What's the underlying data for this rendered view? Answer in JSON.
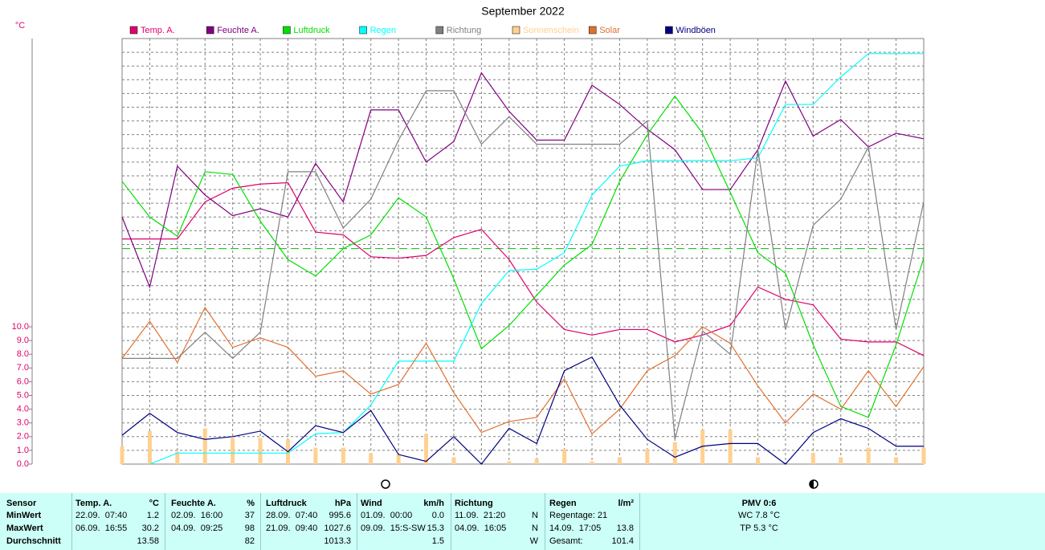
{
  "chart_data": {
    "type": "line",
    "title": "September 2022",
    "y_label": "°C",
    "categories": [
      null,
      null,
      null,
      null,
      null,
      null,
      null,
      null,
      null,
      null,
      null,
      null,
      null,
      null,
      null,
      null,
      null,
      null,
      null,
      null,
      null,
      null,
      null,
      null,
      null,
      null,
      null,
      null,
      null,
      null
    ],
    "ylim": [
      0,
      31
    ],
    "yticks": [
      {
        "value": 0,
        "label": "0.0"
      },
      {
        "value": 1,
        "label": "1.0"
      },
      {
        "value": 2,
        "label": "2.0"
      },
      {
        "value": 3,
        "label": "3.0"
      },
      {
        "value": 4,
        "label": "4.0"
      },
      {
        "value": 5,
        "label": "5.0"
      },
      {
        "value": 6,
        "label": "6.0"
      },
      {
        "value": 7,
        "label": "7.0"
      },
      {
        "value": 8,
        "label": "8.0"
      },
      {
        "value": 9,
        "label": "9.0"
      },
      {
        "value": 10,
        "label": "10.0"
      }
    ],
    "grid": true,
    "reference_lines": [
      {
        "value": 15.7,
        "color": "#00c000"
      }
    ],
    "series": [
      {
        "name": "Temp. A.",
        "color": "#e0006c",
        "values": [
          16.4,
          16.4,
          16.4,
          19.1,
          20.1,
          20.4,
          20.5,
          16.9,
          16.7,
          15.1,
          15.0,
          15.2,
          16.5,
          17.1,
          14.9,
          11.8,
          9.8,
          9.4,
          9.8,
          9.8,
          8.9,
          9.4,
          10.1,
          12.9,
          12.0,
          11.6,
          9.1,
          8.9,
          8.9,
          7.9
        ]
      },
      {
        "name": "Feuchte A.",
        "color": "#800080",
        "values": [
          18.0,
          12.9,
          21.7,
          19.6,
          18.1,
          18.6,
          18.0,
          21.9,
          19.1,
          25.8,
          25.8,
          22.0,
          23.5,
          28.5,
          25.7,
          23.6,
          23.6,
          27.6,
          26.2,
          24.4,
          22.9,
          20.0,
          20.0,
          22.9,
          27.9,
          23.9,
          25.1,
          23.1,
          24.1,
          23.7
        ]
      },
      {
        "name": "Luftdruck",
        "color": "#00e000",
        "values": [
          20.6,
          18.0,
          16.6,
          21.3,
          21.1,
          17.7,
          14.9,
          13.7,
          15.7,
          16.7,
          19.4,
          18.0,
          13.5,
          8.4,
          10.1,
          12.3,
          14.5,
          16.0,
          20.6,
          24.0,
          26.8,
          24.1,
          19.8,
          15.4,
          13.9,
          8.7,
          4.2,
          3.4,
          8.7,
          15.0
        ]
      },
      {
        "name": "Regen",
        "color": "#00ffff",
        "values": [
          null,
          0,
          0.8,
          0.8,
          0.8,
          0.8,
          0.8,
          2.2,
          2.3,
          4.3,
          7.5,
          7.5,
          7.5,
          11.7,
          14.1,
          14.2,
          15.4,
          19.6,
          21.7,
          22.1,
          22.1,
          22.1,
          22.1,
          22.3,
          26.2,
          26.2,
          28.2,
          29.9,
          29.9,
          29.9
        ]
      },
      {
        "name": "Richtung",
        "color": "#808080",
        "values": [
          7.7,
          7.7,
          7.7,
          9.6,
          7.7,
          9.6,
          21.3,
          21.3,
          17.2,
          19.3,
          23.6,
          27.2,
          27.2,
          23.3,
          25.3,
          23.3,
          23.3,
          23.3,
          23.3,
          25.0,
          1.8,
          9.7,
          8.0,
          22.9,
          9.8,
          17.4,
          19.3,
          23.1,
          9.8,
          19.1
        ]
      },
      {
        "name": "Sonnenschein",
        "color": "#ffd090",
        "kind": "bar",
        "values": [
          1.3,
          2.4,
          0.9,
          2.6,
          1.9,
          1.9,
          1.8,
          1.2,
          1.2,
          0.8,
          0.7,
          2.2,
          0.5,
          0,
          0.2,
          0.4,
          1.1,
          0.2,
          0.5,
          1.1,
          1.6,
          2.5,
          2.5,
          0.5,
          0,
          0.8,
          0.5,
          1.2,
          0.5,
          1.2
        ]
      },
      {
        "name": "Solar",
        "color": "#e07030",
        "values": [
          7.7,
          10.4,
          7.4,
          11.4,
          8.5,
          9.2,
          8.5,
          6.4,
          6.8,
          5.1,
          5.8,
          8.8,
          5.2,
          2.3,
          3.1,
          3.4,
          6.2,
          2.2,
          4.0,
          6.8,
          7.9,
          10.0,
          8.8,
          5.7,
          3.0,
          5.1,
          4.0,
          6.8,
          4.2,
          7.1
        ]
      },
      {
        "name": "Windböen",
        "color": "#000080",
        "values": [
          2.1,
          3.7,
          2.3,
          1.8,
          2.0,
          2.4,
          0.9,
          2.8,
          2.3,
          3.9,
          0.7,
          0.2,
          2.0,
          0,
          2.6,
          1.5,
          6.8,
          7.8,
          4.3,
          1.8,
          0.5,
          1.3,
          1.5,
          1.5,
          0,
          2.3,
          3.3,
          2.6,
          1.3,
          1.3
        ]
      }
    ]
  },
  "stats": {
    "sensor": {
      "title": "Sensor",
      "rows": [
        "MinWert",
        "MaxWert",
        "Durchschnitt"
      ]
    },
    "columns": [
      {
        "title": "Temp. A.",
        "unit": "°C",
        "min": [
          "22.09.  07:40",
          "1.2"
        ],
        "max": [
          "06.09.  16:55",
          "30.2"
        ],
        "avg": [
          "13.58"
        ]
      },
      {
        "title": "Feuchte A.",
        "unit": "%",
        "min": [
          "02.09.  16:00",
          "37"
        ],
        "max": [
          "04.09.  09:25",
          "98"
        ],
        "avg": [
          "82"
        ]
      },
      {
        "title": "Luftdruck",
        "unit": "hPa",
        "min": [
          "28.09.  07:40",
          "995.6"
        ],
        "max": [
          "21.09.  09:40",
          "1027.6"
        ],
        "avg": [
          "1013.3"
        ]
      },
      {
        "title": "Wind",
        "unit": "km/h",
        "min": [
          "01.09.  00:00",
          "0.0"
        ],
        "max": [
          "09.09.  15:S-SW",
          "15.3"
        ],
        "avg": [
          "1.5"
        ]
      },
      {
        "title": "Richtung",
        "min": [
          "11.09.  21:20",
          "N"
        ],
        "max": [
          "04.09.  16:05",
          "N"
        ],
        "avg": [
          "W"
        ]
      },
      {
        "title": "Regen",
        "unit": "l/m²",
        "min": [
          "Regentage: 21"
        ],
        "max": [
          "14.09.  17:05",
          "13.8"
        ],
        "avg": [
          "Gesamt:",
          "101.4"
        ]
      }
    ],
    "pmv": {
      "title": "PMV 0:6",
      "lines": [
        "WC 7.8 °C",
        "TP 5.3 °C"
      ]
    }
  }
}
